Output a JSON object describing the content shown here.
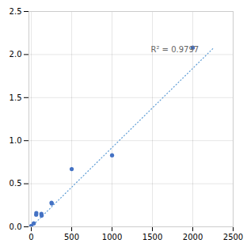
{
  "chart_data": {
    "type": "scatter",
    "x": [
      0,
      30,
      60,
      62,
      125,
      128,
      250,
      253,
      500,
      1000,
      2000
    ],
    "values": [
      0.01,
      0.04,
      0.14,
      0.16,
      0.15,
      0.13,
      0.28,
      0.27,
      0.67,
      0.83,
      2.08
    ],
    "color": "#4472C4",
    "marker": "circle",
    "trendline": {
      "x": [
        0,
        2250
      ],
      "values": [
        0.0,
        2.07
      ],
      "color": "#5B9BD5",
      "line_style": "dotted"
    },
    "annotations": [
      {
        "text": "R² = 0.9797",
        "x": 1480,
        "y": 2.03
      }
    ],
    "xlim": [
      -30,
      2500
    ],
    "ylim": [
      0,
      2.5
    ],
    "xticks": [
      0,
      500,
      1000,
      1500,
      2000,
      2500
    ],
    "yticks": [
      {
        "value": 0,
        "label": "0.0"
      },
      0.5,
      {
        "value": 1.0,
        "label": "1.0"
      },
      1.5,
      {
        "value": 2.0,
        "label": "2.0"
      },
      2.5
    ],
    "grid": true
  }
}
